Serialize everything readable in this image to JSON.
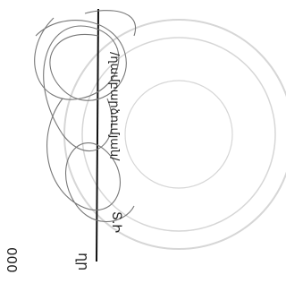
{
  "signature_block": {
    "name": "/ղամբարձումյան/",
    "initials": "Տ.Ի",
    "bottom_right_text": "ղր",
    "bottom_left_text": "000"
  }
}
